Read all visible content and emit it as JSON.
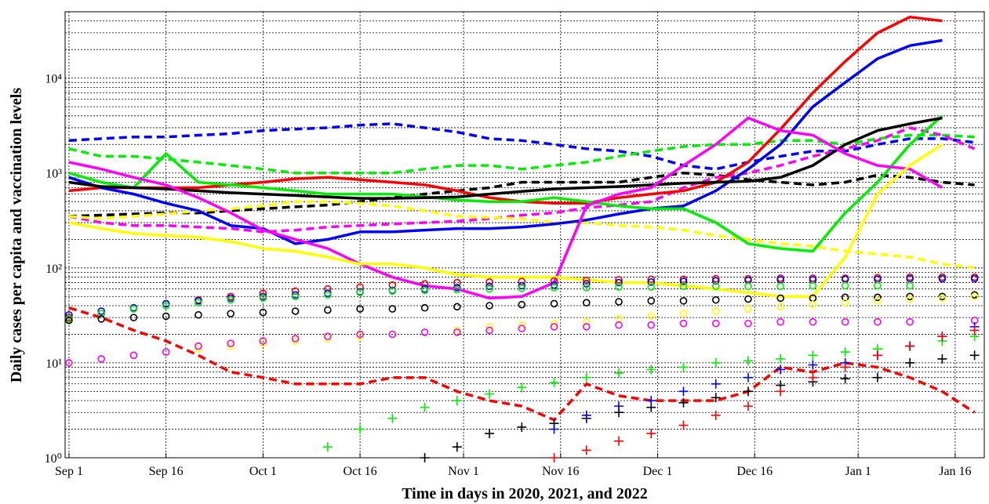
{
  "chart_data": {
    "type": "line",
    "xlabel": "Time in days in 2020, 2021, and 2022",
    "ylabel": "Daily cases per capita and vaccination levels",
    "ylog": true,
    "grid": true,
    "xlim": [
      -0.6,
      141.5
    ],
    "ylim": [
      1,
      50000
    ],
    "xticks": [
      {
        "value": 0,
        "label": "Sep 1"
      },
      {
        "value": 15,
        "label": "Sep 16"
      },
      {
        "value": 30,
        "label": "Oct 1"
      },
      {
        "value": 45,
        "label": "Oct 16"
      },
      {
        "value": 61,
        "label": "Nov 1"
      },
      {
        "value": 76,
        "label": "Nov 16"
      },
      {
        "value": 91,
        "label": "Dec 1"
      },
      {
        "value": 106,
        "label": "Dec 16"
      },
      {
        "value": 122,
        "label": "Jan 1"
      },
      {
        "value": 137,
        "label": "Jan 16"
      }
    ],
    "yticks": [
      {
        "value": 1,
        "label": "10⁰"
      },
      {
        "value": 10,
        "label": "10¹"
      },
      {
        "value": 100,
        "label": "10²"
      },
      {
        "value": 1000,
        "label": "10³"
      },
      {
        "value": 10000,
        "label": "10⁴"
      }
    ],
    "yminorticks": [
      2,
      3,
      4,
      5,
      6,
      7,
      8,
      9,
      20,
      30,
      40,
      50,
      60,
      70,
      80,
      90,
      200,
      300,
      400,
      500,
      600,
      700,
      800,
      900,
      2000,
      3000,
      4000,
      5000,
      6000,
      7000,
      8000,
      9000,
      20000,
      30000,
      40000
    ],
    "x": [
      0,
      5,
      10,
      15,
      20,
      25,
      30,
      35,
      40,
      45,
      50,
      55,
      60,
      65,
      70,
      75,
      80,
      85,
      90,
      95,
      100,
      105,
      110,
      115,
      120,
      125,
      130,
      135,
      140
    ],
    "series": [
      {
        "color": "#0000ff",
        "style": "dashed",
        "values": [
          2200,
          2300,
          2400,
          2400,
          2500,
          2600,
          2800,
          2900,
          3000,
          3200,
          3300,
          3000,
          2700,
          2300,
          2200,
          2000,
          1800,
          1700,
          1500,
          1200,
          1100,
          1300,
          1500,
          1700,
          1700,
          2000,
          2300,
          2300,
          2100
        ]
      },
      {
        "color": "#00ee00",
        "style": "dashed",
        "values": [
          1800,
          1500,
          1500,
          1400,
          1300,
          1200,
          1100,
          1000,
          1000,
          1000,
          1000,
          1100,
          1200,
          1200,
          1100,
          1200,
          1300,
          1500,
          1700,
          1900,
          2000,
          2000,
          2200,
          2200,
          2000,
          2300,
          2500,
          2500,
          2400
        ]
      },
      {
        "color": "#000000",
        "style": "dashed",
        "values": [
          350,
          360,
          370,
          380,
          380,
          400,
          420,
          440,
          460,
          500,
          550,
          600,
          650,
          700,
          800,
          800,
          800,
          800,
          900,
          1000,
          950,
          850,
          800,
          750,
          800,
          950,
          900,
          800,
          750
        ]
      },
      {
        "color": "#ff00ff",
        "style": "dashed",
        "values": [
          350,
          300,
          280,
          280,
          270,
          260,
          240,
          250,
          270,
          280,
          290,
          300,
          310,
          330,
          360,
          380,
          430,
          460,
          500,
          700,
          900,
          1000,
          1200,
          1500,
          1800,
          2200,
          3000,
          2500,
          1800
        ]
      },
      {
        "color": "#ffff00",
        "style": "dashed",
        "values": [
          350,
          330,
          350,
          370,
          400,
          420,
          450,
          500,
          500,
          480,
          450,
          400,
          350,
          340,
          330,
          300,
          300,
          280,
          270,
          250,
          220,
          200,
          180,
          170,
          150,
          140,
          130,
          110,
          100
        ]
      },
      {
        "color": "#ff0000",
        "style": "dashed",
        "values": [
          38,
          30,
          22,
          17,
          12,
          8,
          7,
          6,
          6,
          6,
          7,
          7,
          5,
          4,
          3.5,
          2.5,
          6,
          4.5,
          4,
          4,
          4,
          5,
          9,
          8,
          10,
          9,
          7,
          5,
          3
        ]
      },
      {
        "color": "#ff0000",
        "style": "solid",
        "values": [
          650,
          700,
          700,
          700,
          700,
          750,
          800,
          870,
          900,
          850,
          800,
          750,
          650,
          550,
          500,
          480,
          480,
          550,
          600,
          650,
          800,
          1300,
          2900,
          7000,
          15000,
          30000,
          44000,
          40000,
          null
        ]
      },
      {
        "color": "#0000ff",
        "style": "solid",
        "values": [
          900,
          700,
          600,
          480,
          400,
          280,
          260,
          180,
          200,
          240,
          240,
          250,
          260,
          260,
          270,
          290,
          320,
          370,
          420,
          450,
          650,
          1100,
          2000,
          5000,
          9000,
          16000,
          22000,
          25000,
          null
        ]
      },
      {
        "color": "#00ee00",
        "style": "solid",
        "values": [
          1000,
          800,
          700,
          1600,
          800,
          750,
          700,
          650,
          600,
          600,
          600,
          560,
          520,
          500,
          500,
          550,
          500,
          450,
          420,
          420,
          300,
          180,
          160,
          150,
          380,
          800,
          2000,
          4000,
          null
        ]
      },
      {
        "color": "#000000",
        "style": "solid",
        "values": [
          800,
          720,
          700,
          680,
          650,
          620,
          600,
          580,
          560,
          540,
          540,
          550,
          560,
          600,
          640,
          680,
          700,
          720,
          750,
          780,
          800,
          820,
          900,
          1200,
          2000,
          2800,
          3300,
          3800,
          null
        ]
      },
      {
        "color": "#ff00ff",
        "style": "solid",
        "values": [
          1300,
          1100,
          900,
          750,
          550,
          380,
          250,
          200,
          160,
          110,
          80,
          65,
          60,
          48,
          50,
          70,
          450,
          600,
          700,
          1200,
          2000,
          3800,
          2800,
          2500,
          1600,
          1200,
          1100,
          700,
          null
        ]
      },
      {
        "color": "#ffff00",
        "style": "solid",
        "values": [
          300,
          260,
          230,
          220,
          210,
          190,
          160,
          150,
          130,
          110,
          110,
          100,
          85,
          80,
          80,
          80,
          75,
          70,
          70,
          65,
          60,
          55,
          50,
          50,
          130,
          600,
          1200,
          2000,
          null
        ]
      },
      {
        "color": "#ff0000",
        "style": "circle",
        "values": [
          30,
          33,
          38,
          42,
          46,
          50,
          54,
          57,
          60,
          63,
          66,
          68,
          70,
          71,
          72,
          73,
          74,
          75,
          76,
          76,
          77,
          77,
          78,
          78,
          78,
          79,
          80,
          80,
          80
        ]
      },
      {
        "color": "#0000ff",
        "style": "circle",
        "values": [
          32,
          35,
          38,
          42,
          45,
          48,
          50,
          52,
          54,
          56,
          58,
          60,
          62,
          64,
          65,
          66,
          68,
          70,
          71,
          72,
          73,
          74,
          75,
          75,
          76,
          76,
          77,
          77,
          77
        ]
      },
      {
        "color": "#00ee00",
        "style": "circle",
        "values": [
          29,
          33,
          37,
          40,
          43,
          46,
          48,
          50,
          52,
          55,
          57,
          58,
          59,
          60,
          61,
          62,
          62,
          63,
          63,
          64,
          64,
          64,
          64,
          65,
          65,
          65,
          65,
          null,
          null
        ]
      },
      {
        "color": "#000000",
        "style": "circle",
        "values": [
          28,
          29,
          30,
          31,
          32,
          33,
          34,
          35,
          36,
          37,
          37,
          38,
          39,
          40,
          41,
          42,
          43,
          44,
          45,
          45,
          46,
          47,
          48,
          48,
          49,
          49,
          50,
          50,
          52
        ]
      },
      {
        "color": "#ffff00",
        "style": "circle",
        "values": [
          10,
          11,
          12,
          13,
          14,
          15,
          16,
          17,
          18,
          19,
          20,
          21,
          22,
          24,
          25,
          26,
          27,
          29,
          31,
          33,
          35,
          37,
          39,
          41,
          43,
          45,
          47,
          48,
          50
        ]
      },
      {
        "color": "#ff00ff",
        "style": "circle",
        "values": [
          10,
          11,
          12,
          13,
          15,
          16,
          17,
          18,
          19,
          20,
          20,
          21,
          21,
          22,
          23,
          24,
          24,
          25,
          25,
          26,
          26,
          26,
          27,
          27,
          27,
          27,
          27,
          null,
          28
        ]
      },
      {
        "color": "#00ee00",
        "style": "plus",
        "values": [
          null,
          null,
          null,
          null,
          null,
          null,
          null,
          null,
          1.3,
          2,
          2.6,
          3.4,
          4,
          4.7,
          5.5,
          6.2,
          7,
          7.8,
          8.5,
          9,
          10,
          10.5,
          11,
          12,
          13,
          14,
          15,
          17,
          19
        ]
      },
      {
        "color": "#000000",
        "style": "plus",
        "values": [
          null,
          null,
          null,
          null,
          null,
          null,
          null,
          null,
          null,
          null,
          null,
          1,
          1.3,
          1.8,
          2.1,
          2.3,
          2.6,
          3,
          3.4,
          3.8,
          4.3,
          5,
          5.8,
          6.3,
          6.8,
          7,
          10,
          11,
          12
        ]
      },
      {
        "color": "#0000ff",
        "style": "plus",
        "values": [
          null,
          null,
          null,
          null,
          null,
          null,
          null,
          null,
          null,
          null,
          null,
          null,
          null,
          null,
          null,
          2,
          2.8,
          3.5,
          4,
          5,
          6,
          7,
          8.5,
          9.5,
          10,
          12,
          15,
          19,
          24
        ]
      },
      {
        "color": "#ff0000",
        "style": "plus",
        "values": [
          null,
          null,
          null,
          null,
          null,
          null,
          null,
          null,
          null,
          null,
          null,
          null,
          null,
          null,
          null,
          1,
          1.2,
          1.5,
          1.8,
          2.2,
          2.8,
          3.5,
          5,
          7,
          9,
          12,
          15,
          19,
          22
        ]
      }
    ]
  }
}
